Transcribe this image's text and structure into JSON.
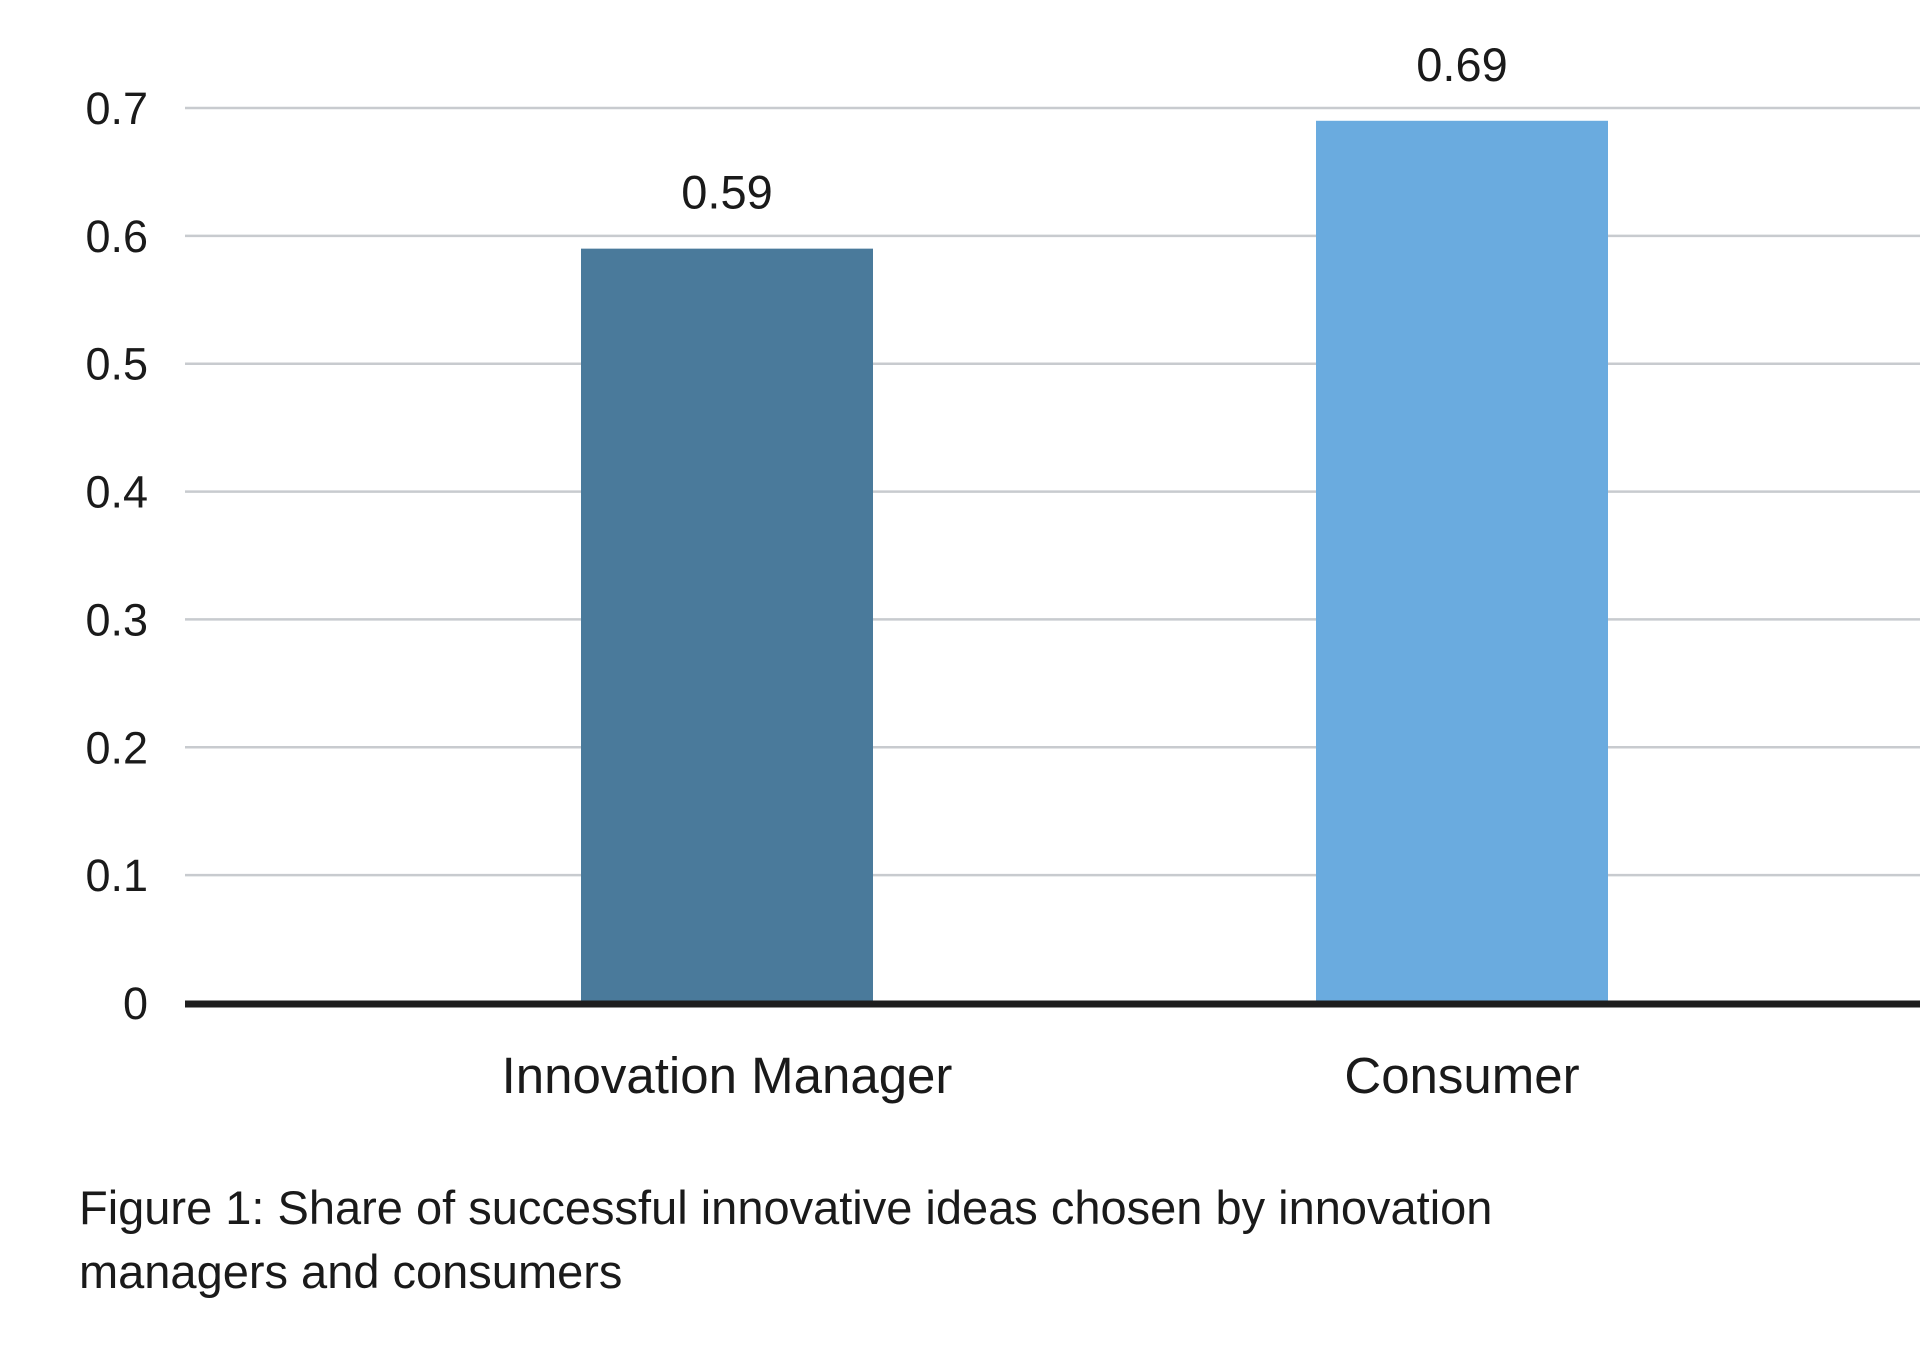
{
  "chart_data": {
    "type": "bar",
    "categories": [
      "Innovation Manager",
      "Consumer"
    ],
    "values": [
      0.59,
      0.69
    ],
    "data_labels": [
      "0.59",
      "0.69"
    ],
    "colors": [
      "#4a7a9b",
      "#6aabdf"
    ],
    "ylim": [
      0,
      0.7
    ],
    "yticks": [
      0,
      0.1,
      0.2,
      0.3,
      0.4,
      0.5,
      0.6,
      0.7
    ],
    "ytick_labels": [
      "0",
      "0.1",
      "0.2",
      "0.3",
      "0.4",
      "0.5",
      "0.6",
      "0.7"
    ],
    "grid": true,
    "gridline_color": "#c8cbcf",
    "baseline_color": "#1e1e1e",
    "xlabel": "",
    "ylabel": "",
    "title": ""
  },
  "caption": "Figure 1: Share of successful innovative ideas chosen by innovation managers and consumers"
}
